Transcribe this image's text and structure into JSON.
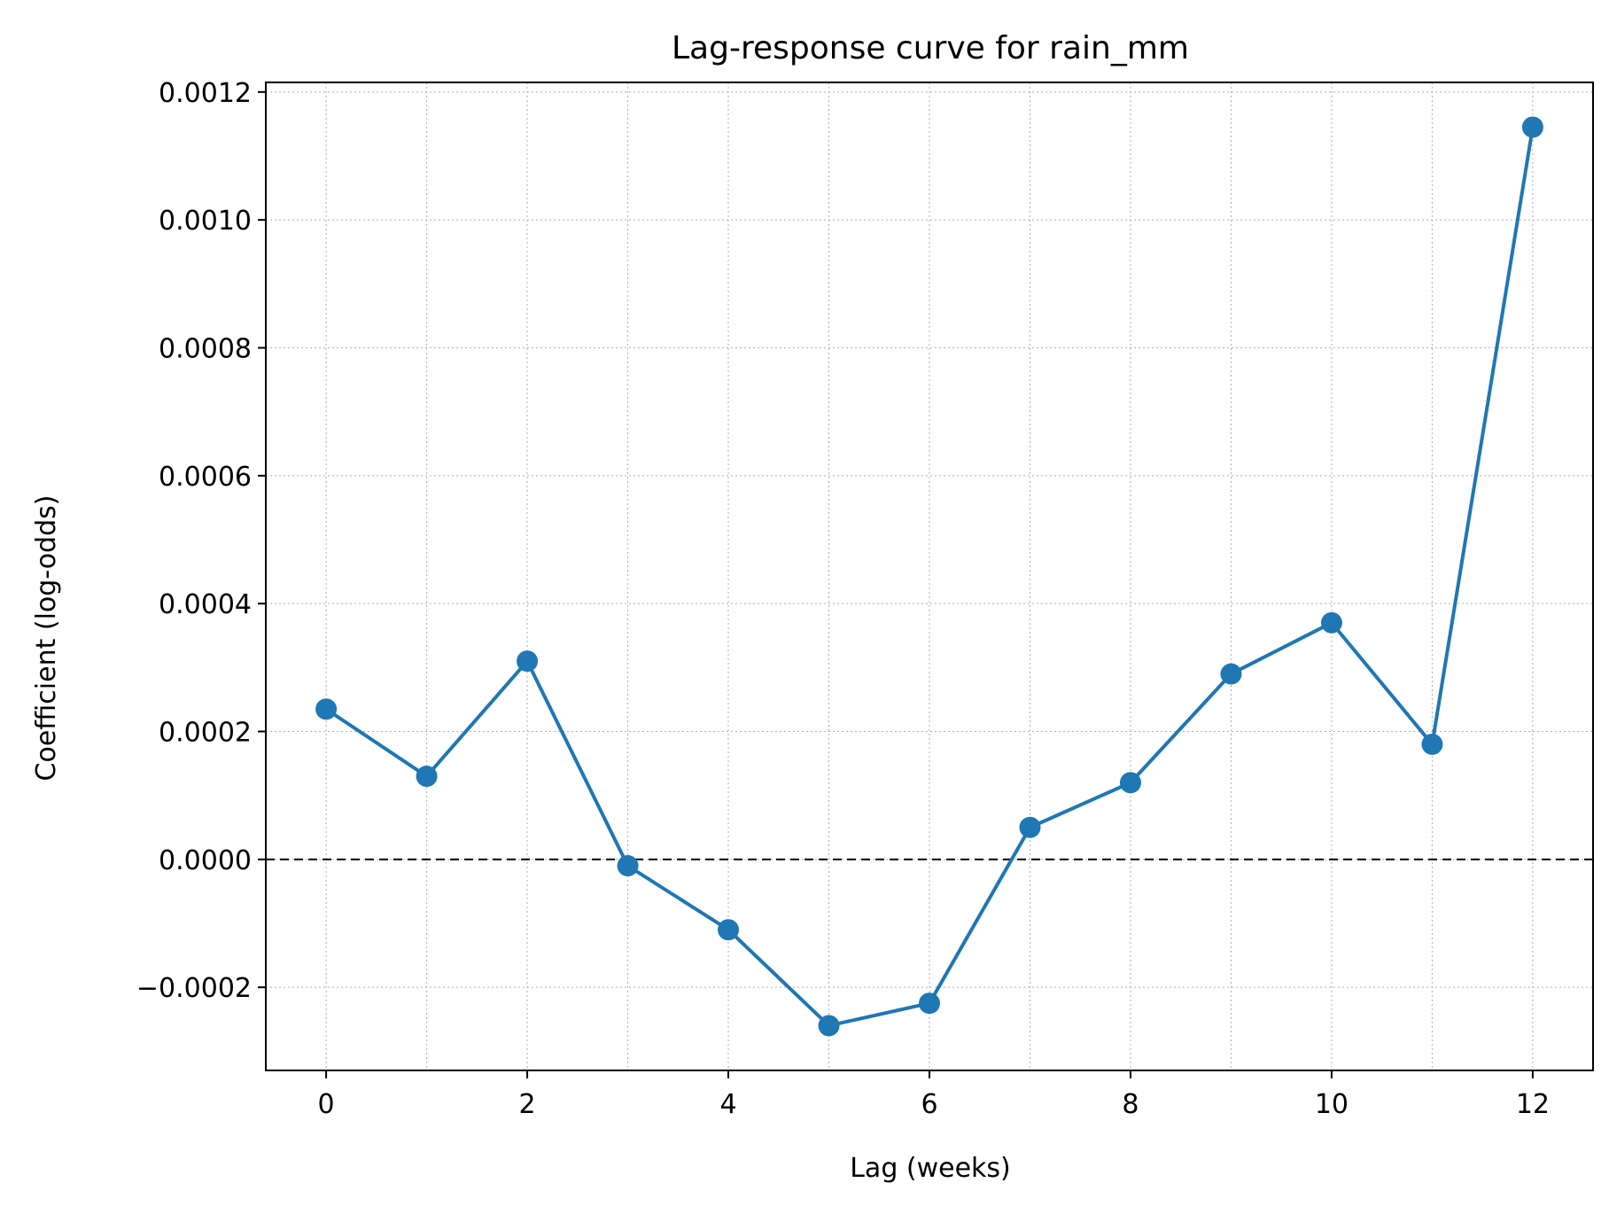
{
  "colors": {
    "series": "#1f77b4",
    "grid": "#b0b0b0",
    "axis": "#000000",
    "reference_line": "#000000",
    "background": "#ffffff"
  },
  "chart_data": {
    "type": "line",
    "title": "Lag-response curve for rain_mm",
    "xlabel": "Lag (weeks)",
    "ylabel": "Coefficient (log-odds)",
    "x": [
      0,
      1,
      2,
      3,
      4,
      5,
      6,
      7,
      8,
      9,
      10,
      11,
      12
    ],
    "series": [
      {
        "values": [
          0.000235,
          0.00013,
          0.00031,
          -1e-05,
          -0.00011,
          -0.00026,
          -0.000225,
          5e-05,
          0.00012,
          0.00029,
          0.00037,
          0.00018,
          0.001145
        ],
        "marker": "circle",
        "color": "#1f77b4"
      }
    ],
    "xlim": [
      -0.6,
      12.6
    ],
    "ylim": [
      -0.00033,
      0.001215
    ],
    "xticks": [
      0,
      2,
      4,
      6,
      8,
      10,
      12
    ],
    "xtick_labels": [
      "0",
      "2",
      "4",
      "6",
      "8",
      "10",
      "12"
    ],
    "yticks": [
      -0.0002,
      0.0,
      0.0002,
      0.0004,
      0.0006,
      0.0008,
      0.001,
      0.0012
    ],
    "ytick_labels": [
      "−0.0002",
      "0.0000",
      "0.0002",
      "0.0004",
      "0.0006",
      "0.0008",
      "0.0010",
      "0.0012"
    ],
    "grid": true,
    "grid_style": "dotted",
    "reference_line": {
      "y": 0,
      "style": "dashed"
    }
  }
}
